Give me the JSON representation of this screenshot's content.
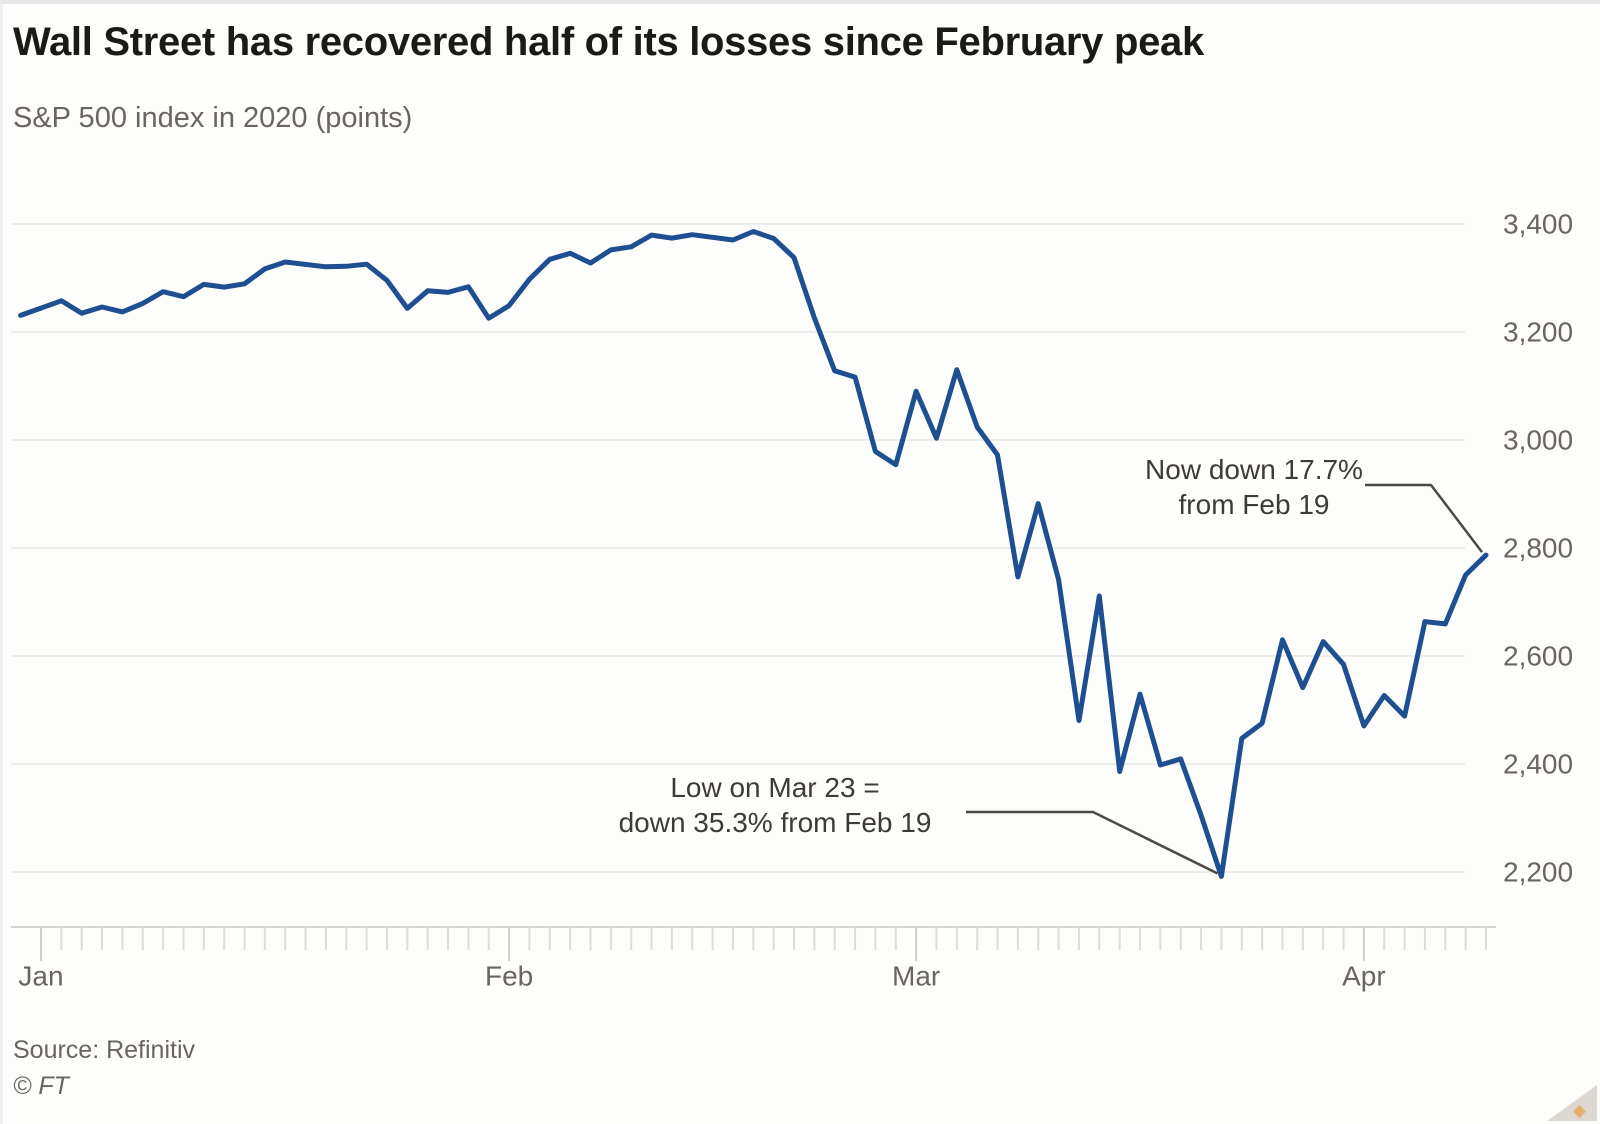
{
  "header": {
    "title": "Wall Street has recovered half of its losses since February peak",
    "subtitle": "S&P 500 index in 2020 (points)"
  },
  "footer": {
    "source": "Source: Refinitiv",
    "copyright": "© FT"
  },
  "colors": {
    "line_blue": "#1d4f91",
    "gridline": "#efedeb",
    "axis": "#d6d3d0",
    "tick_minor": "#dfdcd9",
    "tick_month": "#d2cfcc",
    "text_gray": "#6b6560",
    "annotation_text": "#3e3a37",
    "connector": "#4c4844"
  },
  "chart_data": {
    "type": "line",
    "title": "Wall Street has recovered half of its losses since February peak",
    "subtitle": "S&P 500 index in 2020 (points)",
    "xlabel": "",
    "ylabel": "S&P 500 index (points)",
    "x_range": [
      "2020-01-01",
      "2020-04-09"
    ],
    "ylim": [
      2150,
      3450
    ],
    "grid": "horizontal",
    "legend": "none",
    "y_axis": {
      "side": "right",
      "ticks": [
        3400,
        3200,
        3000,
        2800,
        2600,
        2400,
        2200
      ],
      "tick_labels": [
        "3,400",
        "3,200",
        "3,000",
        "2,800",
        "2,600",
        "2,400",
        "2,200"
      ]
    },
    "x_axis": {
      "tick_unit": "weekday",
      "month_labels": [
        "Jan",
        "Feb",
        "Mar",
        "Apr"
      ]
    },
    "series": [
      {
        "name": "S&P 500",
        "color": "#1d4f91",
        "points": [
          {
            "date": "2019-12-31",
            "value": 3230.78
          },
          {
            "date": "2020-01-02",
            "value": 3257.85
          },
          {
            "date": "2020-01-03",
            "value": 3234.85
          },
          {
            "date": "2020-01-06",
            "value": 3246.28
          },
          {
            "date": "2020-01-07",
            "value": 3237.18
          },
          {
            "date": "2020-01-08",
            "value": 3253.05
          },
          {
            "date": "2020-01-09",
            "value": 3274.7
          },
          {
            "date": "2020-01-10",
            "value": 3265.35
          },
          {
            "date": "2020-01-13",
            "value": 3288.13
          },
          {
            "date": "2020-01-14",
            "value": 3283.15
          },
          {
            "date": "2020-01-15",
            "value": 3289.29
          },
          {
            "date": "2020-01-16",
            "value": 3316.81
          },
          {
            "date": "2020-01-17",
            "value": 3329.62
          },
          {
            "date": "2020-01-21",
            "value": 3320.79
          },
          {
            "date": "2020-01-22",
            "value": 3321.75
          },
          {
            "date": "2020-01-23",
            "value": 3325.54
          },
          {
            "date": "2020-01-24",
            "value": 3295.47
          },
          {
            "date": "2020-01-27",
            "value": 3243.63
          },
          {
            "date": "2020-01-28",
            "value": 3276.24
          },
          {
            "date": "2020-01-29",
            "value": 3273.4
          },
          {
            "date": "2020-01-30",
            "value": 3283.66
          },
          {
            "date": "2020-01-31",
            "value": 3225.52
          },
          {
            "date": "2020-02-03",
            "value": 3248.92
          },
          {
            "date": "2020-02-04",
            "value": 3297.59
          },
          {
            "date": "2020-02-05",
            "value": 3334.69
          },
          {
            "date": "2020-02-06",
            "value": 3345.78
          },
          {
            "date": "2020-02-07",
            "value": 3327.71
          },
          {
            "date": "2020-02-10",
            "value": 3352.09
          },
          {
            "date": "2020-02-11",
            "value": 3357.75
          },
          {
            "date": "2020-02-12",
            "value": 3379.45
          },
          {
            "date": "2020-02-13",
            "value": 3373.94
          },
          {
            "date": "2020-02-14",
            "value": 3380.16
          },
          {
            "date": "2020-02-18",
            "value": 3370.29
          },
          {
            "date": "2020-02-19",
            "value": 3386.15
          },
          {
            "date": "2020-02-20",
            "value": 3373.23
          },
          {
            "date": "2020-02-21",
            "value": 3337.75
          },
          {
            "date": "2020-02-24",
            "value": 3225.89
          },
          {
            "date": "2020-02-25",
            "value": 3128.21
          },
          {
            "date": "2020-02-26",
            "value": 3116.39
          },
          {
            "date": "2020-02-27",
            "value": 2978.76
          },
          {
            "date": "2020-02-28",
            "value": 2954.22
          },
          {
            "date": "2020-03-02",
            "value": 3090.23
          },
          {
            "date": "2020-03-03",
            "value": 3003.37
          },
          {
            "date": "2020-03-04",
            "value": 3130.12
          },
          {
            "date": "2020-03-05",
            "value": 3023.94
          },
          {
            "date": "2020-03-06",
            "value": 2972.37
          },
          {
            "date": "2020-03-09",
            "value": 2746.56
          },
          {
            "date": "2020-03-10",
            "value": 2882.23
          },
          {
            "date": "2020-03-11",
            "value": 2741.38
          },
          {
            "date": "2020-03-12",
            "value": 2480.64
          },
          {
            "date": "2020-03-13",
            "value": 2711.02
          },
          {
            "date": "2020-03-16",
            "value": 2386.13
          },
          {
            "date": "2020-03-17",
            "value": 2529.19
          },
          {
            "date": "2020-03-18",
            "value": 2398.1
          },
          {
            "date": "2020-03-19",
            "value": 2409.39
          },
          {
            "date": "2020-03-20",
            "value": 2304.92
          },
          {
            "date": "2020-03-23",
            "value": 2191.86
          },
          {
            "date": "2020-03-24",
            "value": 2447.33
          },
          {
            "date": "2020-03-25",
            "value": 2475.56
          },
          {
            "date": "2020-03-26",
            "value": 2630.07
          },
          {
            "date": "2020-03-27",
            "value": 2541.47
          },
          {
            "date": "2020-03-30",
            "value": 2626.65
          },
          {
            "date": "2020-03-31",
            "value": 2584.59
          },
          {
            "date": "2020-04-01",
            "value": 2470.5
          },
          {
            "date": "2020-04-02",
            "value": 2526.9
          },
          {
            "date": "2020-04-03",
            "value": 2488.65
          },
          {
            "date": "2020-04-06",
            "value": 2663.68
          },
          {
            "date": "2020-04-07",
            "value": 2659.41
          },
          {
            "date": "2020-04-08",
            "value": 2749.98
          },
          {
            "date": "2020-04-09",
            "value": 2786.9
          }
        ]
      }
    ],
    "annotations": [
      {
        "id": "low",
        "lines": [
          "Low on Mar 23 =",
          "down 35.3% from Feb 19"
        ],
        "target_date": "2020-03-23",
        "target_value": 2191.86
      },
      {
        "id": "now",
        "lines": [
          "Now down 17.7%",
          "from Feb 19"
        ],
        "target_date": "2020-04-09",
        "target_value": 2786.9
      }
    ]
  }
}
